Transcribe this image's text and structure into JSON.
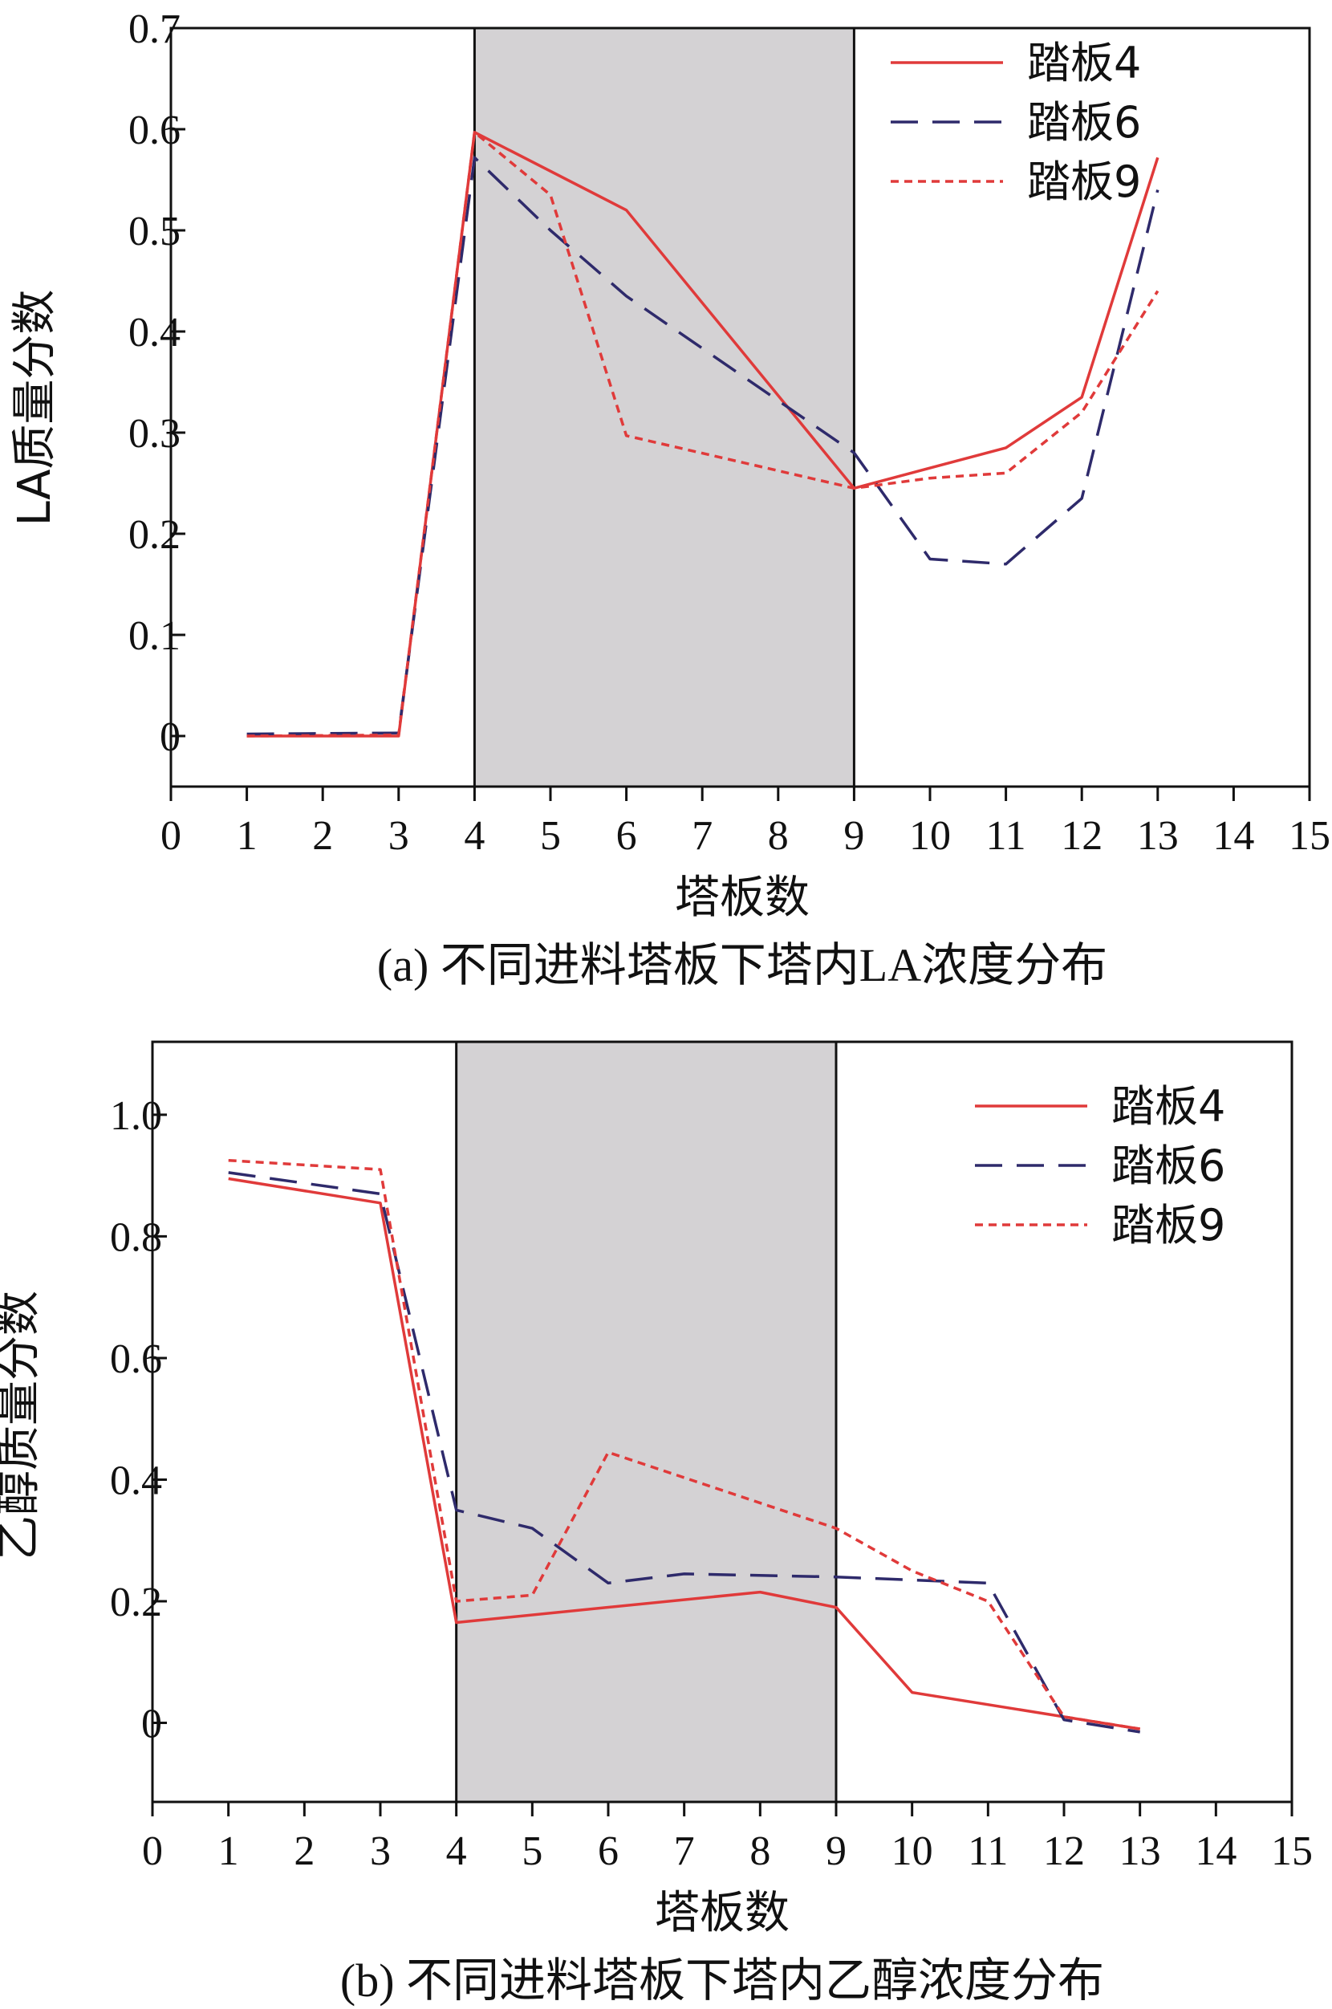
{
  "chart_data": [
    {
      "type": "line",
      "caption": "(a) 不同进料塔板下塔内LA浓度分布",
      "xlabel": "塔板数",
      "ylabel": "LA质量分数",
      "xlim": [
        0,
        15
      ],
      "ylim": [
        -0.05,
        0.7
      ],
      "xticks": [
        0,
        1,
        2,
        3,
        4,
        5,
        6,
        7,
        8,
        9,
        10,
        11,
        12,
        13,
        14,
        15
      ],
      "yticks": [
        0,
        0.1,
        0.2,
        0.3,
        0.4,
        0.5,
        0.6,
        0.7
      ],
      "ytick_labels": [
        "0",
        "0.1",
        "0.2",
        "0.3",
        "0.4",
        "0.5",
        "0.6",
        "0.7"
      ],
      "shaded_region": [
        4,
        9
      ],
      "legend_position": "top-right",
      "series": [
        {
          "name": "踏板4",
          "style": "solid",
          "color": "#e03a3a",
          "x": [
            1,
            3,
            4,
            6,
            9,
            11,
            12,
            13
          ],
          "y": [
            0.0,
            0.0,
            0.597,
            0.52,
            0.245,
            0.285,
            0.335,
            0.572
          ]
        },
        {
          "name": "踏板6",
          "style": "dashed",
          "color": "#2e2a6b",
          "x": [
            1,
            3,
            4,
            5,
            6,
            9,
            10,
            11,
            12,
            13
          ],
          "y": [
            0.002,
            0.003,
            0.572,
            0.5,
            0.435,
            0.28,
            0.175,
            0.17,
            0.235,
            0.54
          ]
        },
        {
          "name": "踏板9",
          "style": "dotted",
          "color": "#e03a3a",
          "x": [
            1,
            3,
            4,
            5,
            6,
            9,
            10,
            11,
            12,
            13
          ],
          "y": [
            0.0,
            0.001,
            0.597,
            0.535,
            0.297,
            0.245,
            0.255,
            0.26,
            0.32,
            0.44
          ]
        }
      ]
    },
    {
      "type": "line",
      "caption": "(b) 不同进料塔板下塔内乙醇浓度分布",
      "xlabel": "塔板数",
      "ylabel": "乙醇质量分数",
      "xlim": [
        0,
        15
      ],
      "ylim": [
        -0.13,
        1.12
      ],
      "xticks": [
        0,
        1,
        2,
        3,
        4,
        5,
        6,
        7,
        8,
        9,
        10,
        11,
        12,
        13,
        14,
        15
      ],
      "yticks": [
        0,
        0.2,
        0.4,
        0.6,
        0.8,
        1.0
      ],
      "ytick_labels": [
        "0",
        "0.2",
        "0.4",
        "0.6",
        "0.8",
        "1.0"
      ],
      "shaded_region": [
        4,
        9
      ],
      "legend_position": "top-right",
      "series": [
        {
          "name": "踏板4",
          "style": "solid",
          "color": "#e03a3a",
          "x": [
            1,
            3,
            4,
            8,
            9,
            10,
            13
          ],
          "y": [
            0.895,
            0.855,
            0.165,
            0.215,
            0.19,
            0.05,
            -0.01
          ]
        },
        {
          "name": "踏板6",
          "style": "dashed",
          "color": "#2e2a6b",
          "x": [
            1,
            3,
            4,
            5,
            6,
            7,
            9,
            11,
            12,
            13
          ],
          "y": [
            0.905,
            0.87,
            0.35,
            0.32,
            0.23,
            0.245,
            0.24,
            0.23,
            0.005,
            -0.015
          ]
        },
        {
          "name": "踏板9",
          "style": "dotted",
          "color": "#e03a3a",
          "x": [
            1,
            3,
            4,
            5,
            6,
            9,
            10,
            11,
            12,
            13
          ],
          "y": [
            0.925,
            0.91,
            0.2,
            0.21,
            0.445,
            0.32,
            0.25,
            0.2,
            0.01,
            -0.01
          ]
        }
      ]
    }
  ]
}
